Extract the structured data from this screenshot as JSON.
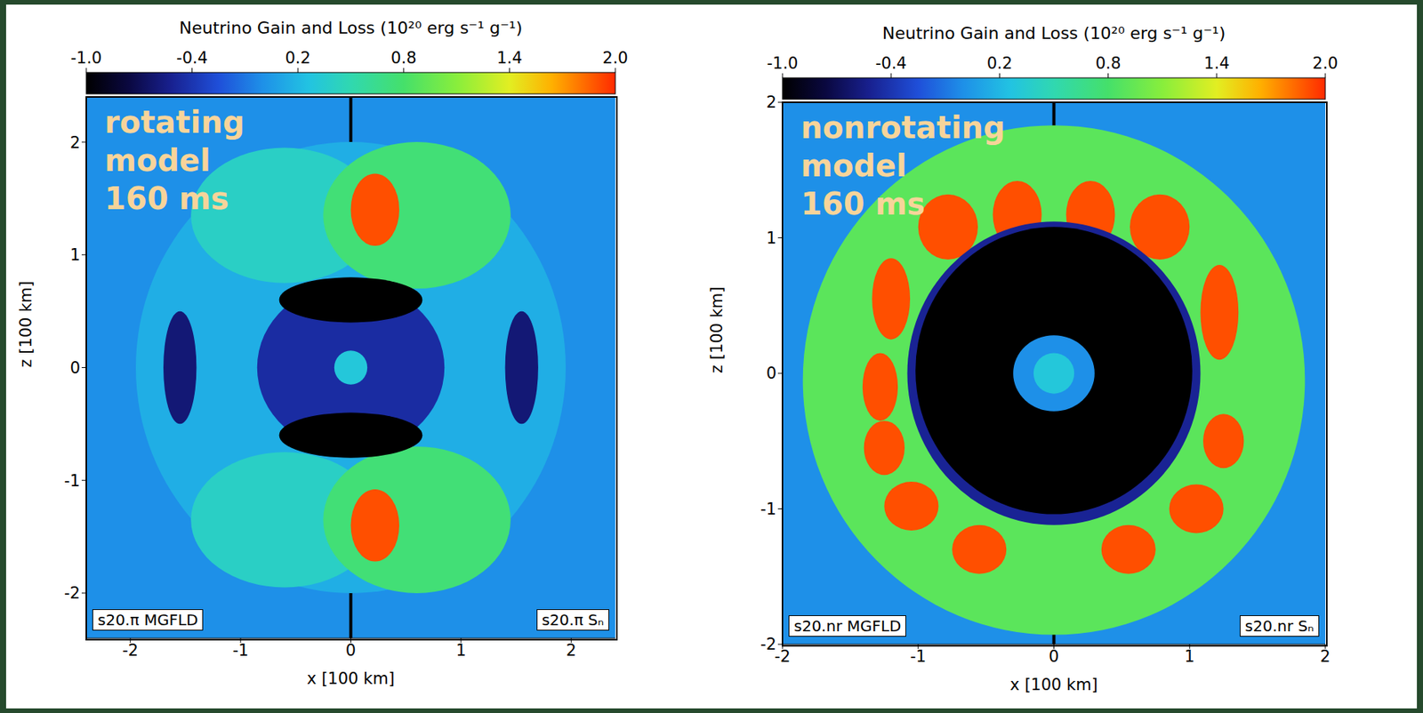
{
  "chart_data": [
    {
      "type": "heatmap",
      "colorbar_label": "Neutrino Gain and Loss (10²⁰ erg s⁻¹ g⁻¹)",
      "colorbar_range": [
        -1,
        2
      ],
      "colorbar_ticks": [
        {
          "value": -1,
          "label": "-1.0"
        },
        -0.4,
        0.2,
        0.8,
        1.4,
        {
          "value": 2,
          "label": "2.0"
        }
      ],
      "annotation": [
        "rotating",
        "model",
        "160 ms"
      ],
      "left_label": "s20.π MGFLD",
      "right_label": "s20.π Sₙ",
      "x_label": "x [100 km]",
      "y_label": "z [100 km]",
      "xlim": [
        -2.4,
        2.4
      ],
      "ylim": [
        -2.4,
        2.4
      ],
      "xticks": [
        -2,
        -1,
        0,
        1,
        2
      ],
      "yticks": [
        -2,
        -1,
        0,
        1,
        2
      ],
      "divider_x": 0,
      "background_value": 0,
      "cells": [
        {
          "x": 0,
          "z": 0,
          "rx": 1.95,
          "rz": 2.0,
          "value": 0.15
        },
        {
          "x": -0.6,
          "z": 1.35,
          "rx": 0.85,
          "rz": 0.6,
          "value": 0.4
        },
        {
          "x": 0.6,
          "z": 1.35,
          "rx": 0.85,
          "rz": 0.65,
          "value": 0.75
        },
        {
          "x": -0.6,
          "z": -1.35,
          "rx": 0.85,
          "rz": 0.6,
          "value": 0.4
        },
        {
          "x": 0.6,
          "z": -1.35,
          "rx": 0.85,
          "rz": 0.65,
          "value": 0.75
        },
        {
          "x": 0.22,
          "z": 1.4,
          "rx": 0.22,
          "rz": 0.32,
          "value": 1.9
        },
        {
          "x": 0.22,
          "z": -1.4,
          "rx": 0.22,
          "rz": 0.32,
          "value": 1.9
        },
        {
          "x": -1.55,
          "z": 0,
          "rx": 0.15,
          "rz": 0.5,
          "value": -0.6
        },
        {
          "x": 1.55,
          "z": 0,
          "rx": 0.15,
          "rz": 0.5,
          "value": -0.6
        },
        {
          "x": 0,
          "z": 0,
          "rx": 0.85,
          "rz": 0.75,
          "value": -0.45
        },
        {
          "x": 0,
          "z": 0.6,
          "rx": 0.65,
          "rz": 0.2,
          "value": -1
        },
        {
          "x": 0,
          "z": -0.6,
          "rx": 0.65,
          "rz": 0.2,
          "value": -1
        },
        {
          "x": 0,
          "z": 0,
          "rx": 0.15,
          "rz": 0.15,
          "value": 0.3
        }
      ]
    },
    {
      "type": "heatmap",
      "colorbar_label": "Neutrino Gain and Loss (10²⁰ erg s⁻¹ g⁻¹)",
      "colorbar_range": [
        -1,
        2
      ],
      "colorbar_ticks": [
        {
          "value": -1,
          "label": "-1.0"
        },
        -0.4,
        0.2,
        0.8,
        1.4,
        {
          "value": 2,
          "label": "2.0"
        }
      ],
      "annotation": [
        "nonrotating",
        "model",
        "160 ms"
      ],
      "left_label": "s20.nr MGFLD",
      "right_label": "s20.nr Sₙ",
      "x_label": "x [100 km]",
      "y_label": "z [100 km]",
      "xlim": [
        -2,
        2
      ],
      "ylim": [
        -2,
        2
      ],
      "xticks": [
        -2,
        -1,
        0,
        1,
        2
      ],
      "yticks": [
        -2,
        -1,
        0,
        1,
        2
      ],
      "divider_x": 0,
      "background_value": 0,
      "cells": [
        {
          "x": 0,
          "z": -0.05,
          "rx": 1.85,
          "rz": 1.88,
          "value": 0.9
        },
        {
          "x": -0.27,
          "z": 1.17,
          "rx": 0.18,
          "rz": 0.25,
          "value": 1.9
        },
        {
          "x": 0.27,
          "z": 1.17,
          "rx": 0.18,
          "rz": 0.25,
          "value": 1.9
        },
        {
          "x": -0.78,
          "z": 1.08,
          "rx": 0.22,
          "rz": 0.24,
          "value": 1.9
        },
        {
          "x": 0.78,
          "z": 1.08,
          "rx": 0.22,
          "rz": 0.24,
          "value": 1.9
        },
        {
          "x": -1.2,
          "z": 0.55,
          "rx": 0.14,
          "rz": 0.3,
          "value": 1.9
        },
        {
          "x": 1.22,
          "z": 0.45,
          "rx": 0.14,
          "rz": 0.35,
          "value": 1.9
        },
        {
          "x": -1.28,
          "z": -0.1,
          "rx": 0.13,
          "rz": 0.25,
          "value": 1.9
        },
        {
          "x": -1.25,
          "z": -0.55,
          "rx": 0.15,
          "rz": 0.2,
          "value": 1.9
        },
        {
          "x": 1.25,
          "z": -0.5,
          "rx": 0.15,
          "rz": 0.2,
          "value": 1.9
        },
        {
          "x": -1.05,
          "z": -0.98,
          "rx": 0.2,
          "rz": 0.18,
          "value": 1.9
        },
        {
          "x": 1.05,
          "z": -1.0,
          "rx": 0.2,
          "rz": 0.18,
          "value": 1.9
        },
        {
          "x": -0.55,
          "z": -1.3,
          "rx": 0.2,
          "rz": 0.18,
          "value": 1.9
        },
        {
          "x": 0.55,
          "z": -1.3,
          "rx": 0.2,
          "rz": 0.18,
          "value": 1.9
        },
        {
          "x": 0,
          "z": 0,
          "rx": 1.08,
          "rz": 1.12,
          "value": -0.5
        },
        {
          "x": 0,
          "z": 0.02,
          "rx": 1.02,
          "rz": 1.06,
          "value": -1
        },
        {
          "x": 0,
          "z": 0,
          "rx": 0.3,
          "rz": 0.28,
          "value": 0
        },
        {
          "x": 0,
          "z": 0,
          "rx": 0.15,
          "rz": 0.15,
          "value": 0.3
        }
      ]
    }
  ]
}
